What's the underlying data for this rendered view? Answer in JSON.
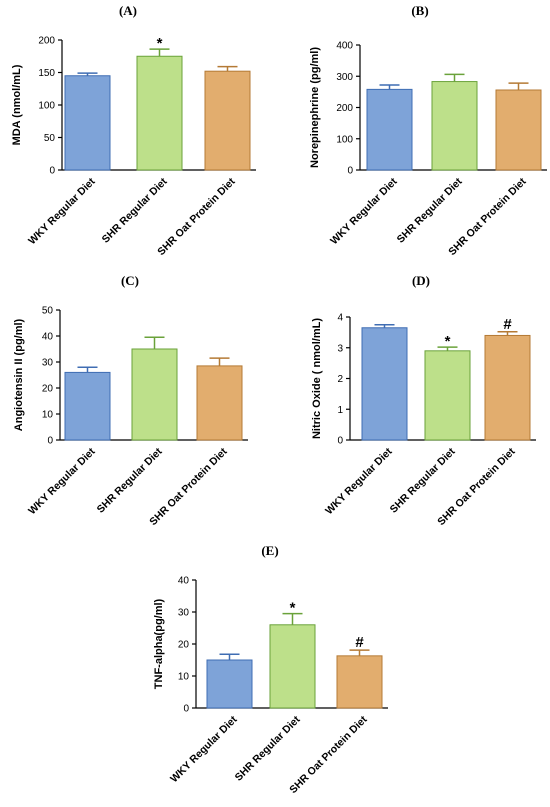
{
  "colors": {
    "WKY Regular Diet": {
      "fill": "#7ea3d8",
      "stroke": "#3f6db3"
    },
    "SHR Regular Diet": {
      "fill": "#bde08a",
      "stroke": "#6aa23a"
    },
    "SHR Oat Protein Diet": {
      "fill": "#e2ad6e",
      "stroke": "#b47a35"
    }
  },
  "chart_data": [
    {
      "type": "bar",
      "panel_label": "(A)",
      "ylabel": "MDA (nmol/mL)",
      "categories": [
        "WKY Regular Diet",
        "SHR Regular Diet",
        "SHR Oat Protein Diet"
      ],
      "values": [
        145,
        175,
        152
      ],
      "errors": [
        4,
        11,
        7
      ],
      "significance": [
        "",
        "*",
        ""
      ],
      "ylim": [
        0,
        200
      ],
      "yticks": [
        0,
        50,
        100,
        150,
        200
      ]
    },
    {
      "type": "bar",
      "panel_label": "(B)",
      "ylabel": "Norepinephrine (pg/ml)",
      "categories": [
        "WKY Regular Diet",
        "SHR Regular Diet",
        "SHR Oat Protein Diet"
      ],
      "values": [
        258,
        283,
        256
      ],
      "errors": [
        14,
        23,
        22
      ],
      "significance": [
        "",
        "",
        ""
      ],
      "ylim": [
        0,
        400
      ],
      "yticks": [
        0,
        100,
        200,
        300,
        400
      ]
    },
    {
      "type": "bar",
      "panel_label": "(C)",
      "ylabel": "Angiotensin II (pg/ml)",
      "categories": [
        "WKY Regular Diet",
        "SHR Regular Diet",
        "SHR Oat Protein Diet"
      ],
      "values": [
        26,
        35,
        28.5
      ],
      "errors": [
        2,
        4.5,
        3
      ],
      "significance": [
        "",
        "",
        ""
      ],
      "ylim": [
        0,
        50
      ],
      "yticks": [
        0,
        10,
        20,
        30,
        40,
        50
      ]
    },
    {
      "type": "bar",
      "panel_label": "(D)",
      "ylabel": "Nitric Oxide ( nmol/mL)",
      "categories": [
        "WKY Regular Diet",
        "SHR Regular Diet",
        "SHR Oat Protein Diet"
      ],
      "values": [
        3.65,
        2.9,
        3.4
      ],
      "errors": [
        0.1,
        0.12,
        0.12
      ],
      "significance": [
        "",
        "*",
        "#"
      ],
      "ylim": [
        0,
        4
      ],
      "yticks": [
        0,
        1,
        2,
        3,
        4
      ]
    },
    {
      "type": "bar",
      "panel_label": "(E)",
      "ylabel": "TNF-alpha(pg/ml)",
      "categories": [
        "WKY Regular Diet",
        "SHR Regular Diet",
        "SHR Oat Protein Diet"
      ],
      "values": [
        15,
        26,
        16.3
      ],
      "errors": [
        1.8,
        3.5,
        1.8
      ],
      "significance": [
        "",
        "*",
        "#"
      ],
      "ylim": [
        0,
        40
      ],
      "yticks": [
        0,
        10,
        20,
        30,
        40
      ]
    }
  ]
}
